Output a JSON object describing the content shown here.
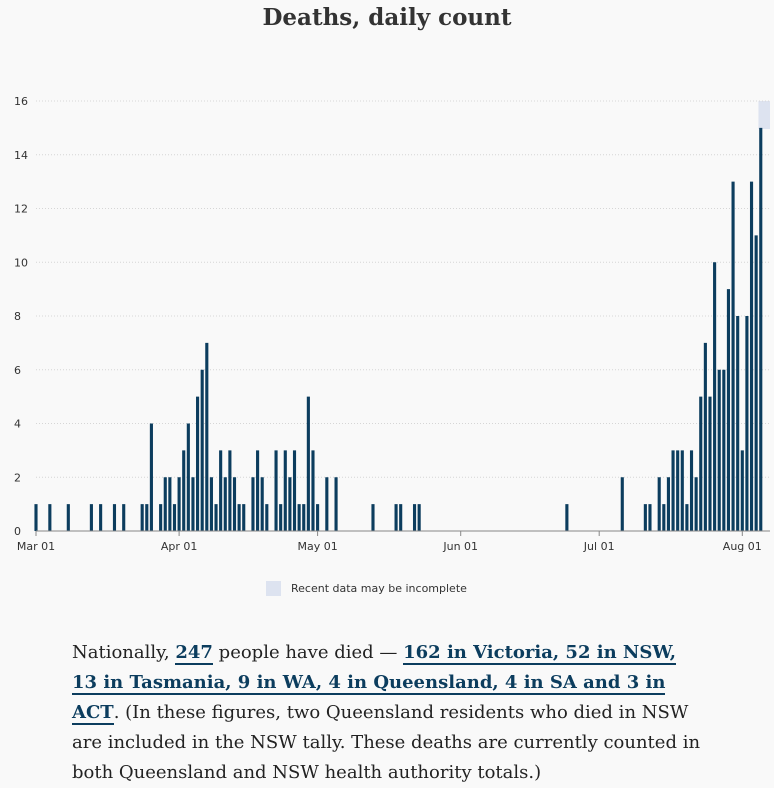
{
  "chart_data": {
    "type": "bar",
    "title": "Deaths, daily count",
    "xlabel": "",
    "ylabel": "",
    "ylim": [
      0,
      16
    ],
    "yticks": [
      0,
      2,
      4,
      6,
      8,
      10,
      12,
      14,
      16
    ],
    "x_start": "2020-03-01",
    "x_end": "2020-08-07",
    "x_ticks": [
      {
        "label": "Mar 01",
        "date": "2020-03-01"
      },
      {
        "label": "Apr 01",
        "date": "2020-04-01"
      },
      {
        "label": "May 01",
        "date": "2020-05-01"
      },
      {
        "label": "Jun 01",
        "date": "2020-06-01"
      },
      {
        "label": "Jul 01",
        "date": "2020-07-01"
      },
      {
        "label": "Aug 01",
        "date": "2020-08-01"
      }
    ],
    "grid": true,
    "bar_color": "#0c3d5e",
    "incomplete_shade_color": "#dde3f0",
    "incomplete_from": "2020-08-05",
    "points": [
      {
        "date": "2020-03-01",
        "value": 1
      },
      {
        "date": "2020-03-04",
        "value": 1
      },
      {
        "date": "2020-03-08",
        "value": 1
      },
      {
        "date": "2020-03-13",
        "value": 1
      },
      {
        "date": "2020-03-15",
        "value": 1
      },
      {
        "date": "2020-03-18",
        "value": 1
      },
      {
        "date": "2020-03-20",
        "value": 1
      },
      {
        "date": "2020-03-24",
        "value": 1
      },
      {
        "date": "2020-03-25",
        "value": 1
      },
      {
        "date": "2020-03-26",
        "value": 4
      },
      {
        "date": "2020-03-28",
        "value": 1
      },
      {
        "date": "2020-03-29",
        "value": 2
      },
      {
        "date": "2020-03-30",
        "value": 2
      },
      {
        "date": "2020-03-31",
        "value": 1
      },
      {
        "date": "2020-04-01",
        "value": 2
      },
      {
        "date": "2020-04-02",
        "value": 3
      },
      {
        "date": "2020-04-03",
        "value": 4
      },
      {
        "date": "2020-04-04",
        "value": 2
      },
      {
        "date": "2020-04-05",
        "value": 5
      },
      {
        "date": "2020-04-06",
        "value": 6
      },
      {
        "date": "2020-04-07",
        "value": 7
      },
      {
        "date": "2020-04-08",
        "value": 2
      },
      {
        "date": "2020-04-09",
        "value": 1
      },
      {
        "date": "2020-04-10",
        "value": 3
      },
      {
        "date": "2020-04-11",
        "value": 2
      },
      {
        "date": "2020-04-12",
        "value": 3
      },
      {
        "date": "2020-04-13",
        "value": 2
      },
      {
        "date": "2020-04-14",
        "value": 1
      },
      {
        "date": "2020-04-15",
        "value": 1
      },
      {
        "date": "2020-04-17",
        "value": 2
      },
      {
        "date": "2020-04-18",
        "value": 3
      },
      {
        "date": "2020-04-19",
        "value": 2
      },
      {
        "date": "2020-04-20",
        "value": 1
      },
      {
        "date": "2020-04-22",
        "value": 3
      },
      {
        "date": "2020-04-23",
        "value": 1
      },
      {
        "date": "2020-04-24",
        "value": 3
      },
      {
        "date": "2020-04-25",
        "value": 2
      },
      {
        "date": "2020-04-26",
        "value": 3
      },
      {
        "date": "2020-04-27",
        "value": 1
      },
      {
        "date": "2020-04-28",
        "value": 1
      },
      {
        "date": "2020-04-29",
        "value": 5
      },
      {
        "date": "2020-04-30",
        "value": 3
      },
      {
        "date": "2020-05-01",
        "value": 1
      },
      {
        "date": "2020-05-03",
        "value": 2
      },
      {
        "date": "2020-05-05",
        "value": 2
      },
      {
        "date": "2020-05-13",
        "value": 1
      },
      {
        "date": "2020-05-18",
        "value": 1
      },
      {
        "date": "2020-05-19",
        "value": 1
      },
      {
        "date": "2020-05-22",
        "value": 1
      },
      {
        "date": "2020-05-23",
        "value": 1
      },
      {
        "date": "2020-06-24",
        "value": 1
      },
      {
        "date": "2020-07-06",
        "value": 2
      },
      {
        "date": "2020-07-11",
        "value": 1
      },
      {
        "date": "2020-07-12",
        "value": 1
      },
      {
        "date": "2020-07-14",
        "value": 2
      },
      {
        "date": "2020-07-15",
        "value": 1
      },
      {
        "date": "2020-07-16",
        "value": 2
      },
      {
        "date": "2020-07-17",
        "value": 3
      },
      {
        "date": "2020-07-18",
        "value": 3
      },
      {
        "date": "2020-07-19",
        "value": 3
      },
      {
        "date": "2020-07-20",
        "value": 1
      },
      {
        "date": "2020-07-21",
        "value": 3
      },
      {
        "date": "2020-07-22",
        "value": 2
      },
      {
        "date": "2020-07-23",
        "value": 5
      },
      {
        "date": "2020-07-24",
        "value": 7
      },
      {
        "date": "2020-07-25",
        "value": 5
      },
      {
        "date": "2020-07-26",
        "value": 10
      },
      {
        "date": "2020-07-27",
        "value": 6
      },
      {
        "date": "2020-07-28",
        "value": 6
      },
      {
        "date": "2020-07-29",
        "value": 9
      },
      {
        "date": "2020-07-30",
        "value": 13
      },
      {
        "date": "2020-07-31",
        "value": 8
      },
      {
        "date": "2020-08-01",
        "value": 3
      },
      {
        "date": "2020-08-02",
        "value": 8
      },
      {
        "date": "2020-08-03",
        "value": 13
      },
      {
        "date": "2020-08-04",
        "value": 11
      },
      {
        "date": "2020-08-05",
        "value": 15
      }
    ]
  },
  "legend": {
    "label": "Recent data may be incomplete"
  },
  "body": {
    "intro": "Nationally, ",
    "total_link": "247",
    "mid": " people have died — ",
    "breakdown_link": "162 in Victoria, 52 in NSW, 13 in Tasmania, 9 in WA, 4 in Queensland, 4 in SA and 3 in ACT",
    "rest": ". (In these figures, two Queensland residents who died in NSW are included in the NSW tally. These deaths are currently counted in both Queensland and NSW health authority totals.)"
  }
}
